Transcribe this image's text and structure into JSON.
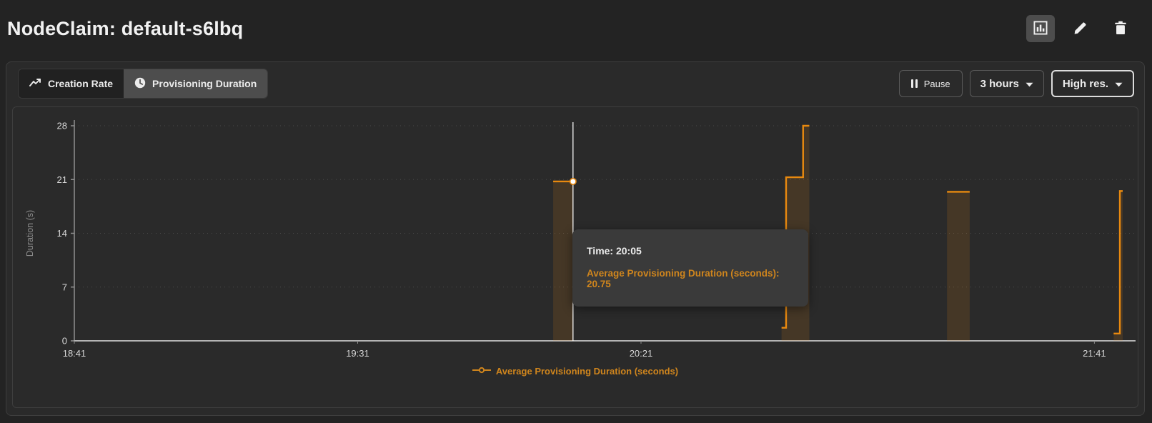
{
  "header": {
    "title": "NodeClaim: default-s6lbq",
    "actions": [
      {
        "name": "chart-view",
        "icon": "bar-chart-icon",
        "active": true
      },
      {
        "name": "edit",
        "icon": "pencil-icon",
        "active": false
      },
      {
        "name": "delete",
        "icon": "trash-icon",
        "active": false
      }
    ]
  },
  "toolbar": {
    "tabs": [
      {
        "label": "Creation Rate",
        "icon": "trend-line-icon",
        "selected": false
      },
      {
        "label": "Provisioning Duration",
        "icon": "clock-icon",
        "selected": true
      }
    ],
    "pause_label": "Pause",
    "pause_icon": "pause-icon",
    "range_value": "3 hours",
    "range_icon": "chevron-down-icon",
    "resolution_value": "High res.",
    "resolution_icon": "chevron-down-icon"
  },
  "tooltip": {
    "title": "Time: 20:05",
    "entry": "Average Provisioning Duration (seconds): 20.75"
  },
  "colors": {
    "series_orange": "#e8890f",
    "orange_text": "#cf851d",
    "background": "#2a2a2a",
    "crosshair_white": "#fafafa"
  },
  "chart_data": {
    "type": "line",
    "step": true,
    "title": "",
    "xlabel": "",
    "ylabel": "Duration (s)",
    "ylim": [
      0,
      28
    ],
    "yticks": [
      0,
      7,
      14,
      21,
      28
    ],
    "grid": "horizontal-dotted",
    "x_start_time": "18:41",
    "x_domain_minutes": [
      0,
      185
    ],
    "xticks": [
      {
        "label": "18:41",
        "min": 0
      },
      {
        "label": "19:31",
        "min": 50
      },
      {
        "label": "20:21",
        "min": 100
      },
      {
        "label": "21:41",
        "min": 180
      }
    ],
    "series": [
      {
        "name": "Average Provisioning Duration (seconds)",
        "color": "#e8890f",
        "area_opacity": 0.14,
        "segments": [
          {
            "points": [
              [
                84.5,
                20.75
              ],
              [
                88,
                20.75
              ]
            ]
          },
          {
            "points": [
              [
                124.8,
                1.7
              ],
              [
                125.6,
                1.7
              ],
              [
                125.6,
                21.3
              ],
              [
                128.6,
                21.3
              ],
              [
                128.6,
                28
              ],
              [
                129.7,
                28
              ]
            ]
          },
          {
            "points": [
              [
                154,
                19.4
              ],
              [
                158,
                19.4
              ]
            ]
          },
          {
            "points": [
              [
                183.4,
                0.95
              ],
              [
                184.5,
                0.95
              ],
              [
                184.5,
                19.5
              ],
              [
                185,
                19.5
              ]
            ]
          }
        ]
      }
    ],
    "crosshair": {
      "min": 88,
      "value": 20.75
    },
    "hovered_point": {
      "time": "20:05",
      "value": 20.75
    },
    "legend": [
      {
        "label": "Average Provisioning Duration (seconds)",
        "color": "#cf851d"
      }
    ],
    "legend_position": "bottom-center"
  }
}
